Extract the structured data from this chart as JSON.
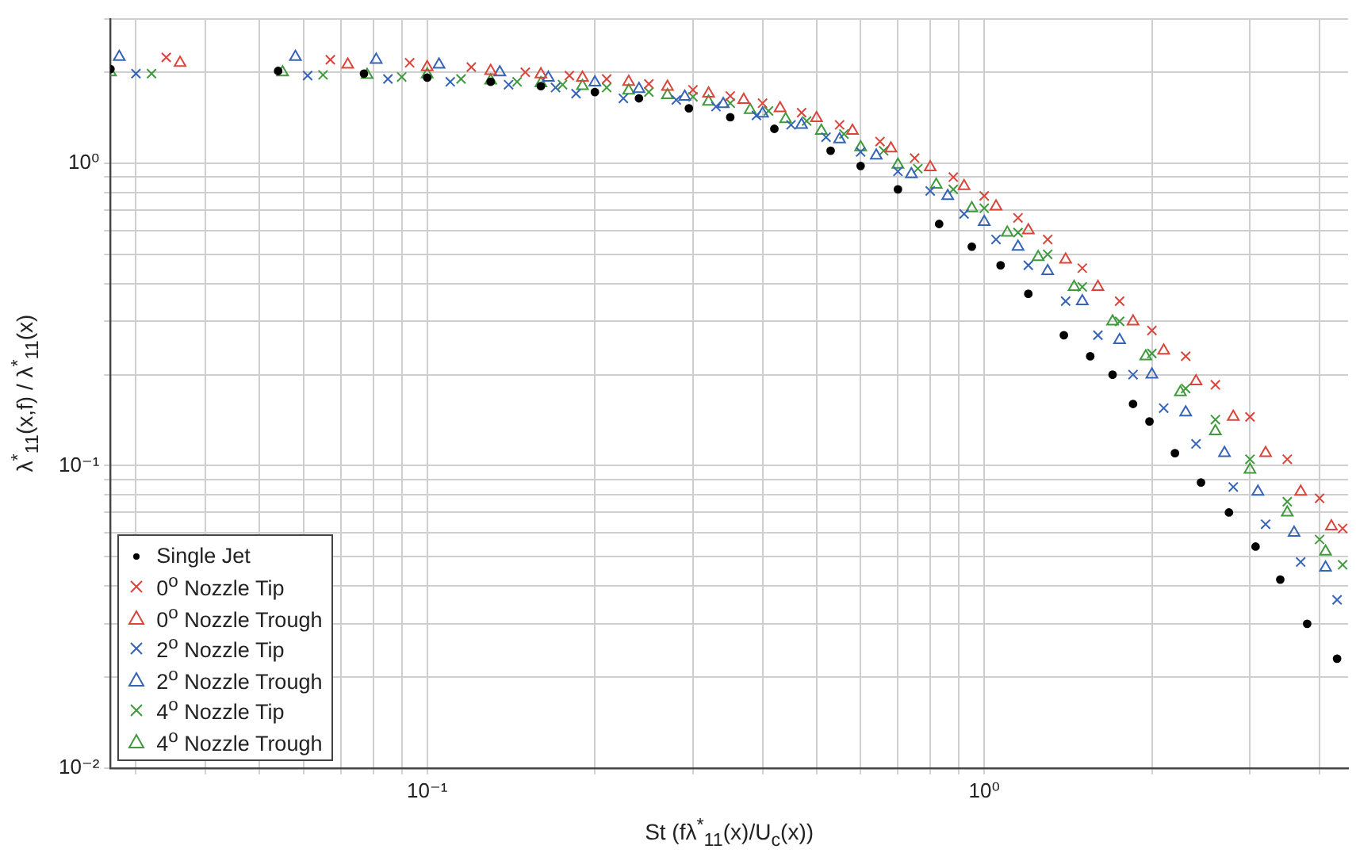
{
  "chart_data": {
    "type": "scatter",
    "xlabel": "St (fλ$^{*}$$_{11}$(x)/U$_{c}$(x))",
    "ylabel": "λ$^{*}$$_{11}$(x,f) / λ$^{*}$$_{11}$(x)",
    "log": "xy",
    "grid": true,
    "legend": "bottom left",
    "xlim": [
      0.027,
      4.5
    ],
    "ylim": [
      0.01,
      3
    ],
    "xticks": [
      {
        "value": 0.03,
        "label": null
      },
      {
        "value": 0.04,
        "label": null
      },
      {
        "value": 0.05,
        "label": null
      },
      {
        "value": 0.06,
        "label": null
      },
      {
        "value": 0.07,
        "label": null
      },
      {
        "value": 0.08,
        "label": null
      },
      {
        "value": 0.09,
        "label": null
      },
      {
        "value": 0.1,
        "label": "10⁻¹"
      },
      {
        "value": 0.2,
        "label": null
      },
      {
        "value": 0.3,
        "label": null
      },
      {
        "value": 0.4,
        "label": null
      },
      {
        "value": 0.5,
        "label": null
      },
      {
        "value": 0.6,
        "label": null
      },
      {
        "value": 0.7,
        "label": null
      },
      {
        "value": 0.8,
        "label": null
      },
      {
        "value": 0.9,
        "label": null
      },
      {
        "value": 1,
        "label": "10⁰"
      },
      {
        "value": 2,
        "label": null
      },
      {
        "value": 3,
        "label": null
      },
      {
        "value": 4,
        "label": null
      }
    ],
    "yticks": [
      {
        "value": 0.01,
        "label": "10⁻²"
      },
      {
        "value": 0.02,
        "label": null
      },
      {
        "value": 0.03,
        "label": null
      },
      {
        "value": 0.04,
        "label": null
      },
      {
        "value": 0.05,
        "label": null
      },
      {
        "value": 0.06,
        "label": null
      },
      {
        "value": 0.07,
        "label": null
      },
      {
        "value": 0.08,
        "label": null
      },
      {
        "value": 0.09,
        "label": null
      },
      {
        "value": 0.1,
        "label": "10⁻¹"
      },
      {
        "value": 0.2,
        "label": null
      },
      {
        "value": 0.3,
        "label": null
      },
      {
        "value": 0.4,
        "label": null
      },
      {
        "value": 0.5,
        "label": null
      },
      {
        "value": 0.6,
        "label": null
      },
      {
        "value": 0.7,
        "label": null
      },
      {
        "value": 0.8,
        "label": null
      },
      {
        "value": 0.9,
        "label": null
      },
      {
        "value": 1,
        "label": "10⁰"
      },
      {
        "value": 2,
        "label": null
      },
      {
        "value": 3,
        "label": null
      }
    ],
    "series": [
      {
        "name": "Single Jet",
        "color": "#000000",
        "marker": "circle",
        "x": [
          0.027,
          0.054,
          0.077,
          0.1,
          0.13,
          0.16,
          0.2,
          0.24,
          0.295,
          0.35,
          0.42,
          0.53,
          0.6,
          0.7,
          0.83,
          0.95,
          1.07,
          1.2,
          1.39,
          1.55,
          1.7,
          1.85,
          1.98,
          2.2,
          2.45,
          2.75,
          3.07,
          3.4,
          3.8,
          4.3
        ],
        "values": [
          2.05,
          2.02,
          1.98,
          1.92,
          1.86,
          1.8,
          1.72,
          1.64,
          1.52,
          1.42,
          1.3,
          1.1,
          0.98,
          0.82,
          0.63,
          0.53,
          0.46,
          0.37,
          0.27,
          0.23,
          0.2,
          0.16,
          0.14,
          0.11,
          0.088,
          0.07,
          0.054,
          0.042,
          0.03,
          0.023
        ]
      },
      {
        "name": "0$^{o}$ Nozzle Tip",
        "color": "#d9453a",
        "marker": "cross",
        "x": [
          0.034,
          0.067,
          0.093,
          0.12,
          0.15,
          0.18,
          0.21,
          0.25,
          0.3,
          0.35,
          0.4,
          0.47,
          0.55,
          0.65,
          0.75,
          0.88,
          1.0,
          1.15,
          1.3,
          1.5,
          1.75,
          2.0,
          2.3,
          2.6,
          3.0,
          3.5,
          4.0,
          4.4
        ],
        "values": [
          2.24,
          2.2,
          2.15,
          2.08,
          2.0,
          1.95,
          1.9,
          1.83,
          1.75,
          1.67,
          1.58,
          1.47,
          1.34,
          1.18,
          1.04,
          0.9,
          0.78,
          0.66,
          0.56,
          0.45,
          0.35,
          0.28,
          0.23,
          0.185,
          0.145,
          0.105,
          0.078,
          0.062
        ]
      },
      {
        "name": "0$^{o}$ Nozzle Trough",
        "color": "#d9453a",
        "marker": "triangle",
        "x": [
          0.036,
          0.072,
          0.1,
          0.13,
          0.16,
          0.19,
          0.23,
          0.27,
          0.32,
          0.37,
          0.43,
          0.5,
          0.58,
          0.68,
          0.8,
          0.92,
          1.05,
          1.2,
          1.4,
          1.6,
          1.85,
          2.1,
          2.4,
          2.8,
          3.2,
          3.7,
          4.2
        ],
        "values": [
          2.15,
          2.12,
          2.08,
          2.02,
          1.97,
          1.92,
          1.86,
          1.79,
          1.7,
          1.62,
          1.52,
          1.41,
          1.28,
          1.12,
          0.97,
          0.84,
          0.72,
          0.6,
          0.48,
          0.39,
          0.3,
          0.24,
          0.19,
          0.145,
          0.11,
          0.082,
          0.063
        ]
      },
      {
        "name": "2$^{o}$ Nozzle Tip",
        "color": "#3563b8",
        "marker": "cross",
        "x": [
          0.03,
          0.061,
          0.085,
          0.11,
          0.14,
          0.17,
          0.185,
          0.225,
          0.28,
          0.33,
          0.39,
          0.45,
          0.52,
          0.6,
          0.7,
          0.8,
          0.92,
          1.05,
          1.2,
          1.4,
          1.6,
          1.85,
          2.1,
          2.4,
          2.8,
          3.2,
          3.7,
          4.3
        ],
        "values": [
          1.98,
          1.95,
          1.9,
          1.86,
          1.82,
          1.78,
          1.7,
          1.64,
          1.62,
          1.54,
          1.44,
          1.34,
          1.22,
          1.09,
          0.94,
          0.81,
          0.68,
          0.56,
          0.46,
          0.35,
          0.27,
          0.2,
          0.155,
          0.118,
          0.085,
          0.064,
          0.048,
          0.036
        ]
      },
      {
        "name": "2$^{o}$ Nozzle Trough",
        "color": "#3563b8",
        "marker": "triangle",
        "x": [
          0.028,
          0.058,
          0.081,
          0.105,
          0.135,
          0.165,
          0.2,
          0.24,
          0.29,
          0.34,
          0.4,
          0.47,
          0.55,
          0.64,
          0.74,
          0.86,
          1.0,
          1.15,
          1.3,
          1.5,
          1.75,
          2.0,
          2.3,
          2.7,
          3.1,
          3.6,
          4.1
        ],
        "values": [
          2.25,
          2.25,
          2.2,
          2.12,
          2.0,
          1.92,
          1.85,
          1.76,
          1.66,
          1.57,
          1.46,
          1.34,
          1.2,
          1.06,
          0.92,
          0.78,
          0.64,
          0.53,
          0.44,
          0.35,
          0.26,
          0.2,
          0.15,
          0.11,
          0.082,
          0.06,
          0.046
        ]
      },
      {
        "name": "4$^{o}$ Nozzle Tip",
        "color": "#3f9a3c",
        "marker": "cross",
        "x": [
          0.032,
          0.065,
          0.09,
          0.115,
          0.145,
          0.175,
          0.21,
          0.25,
          0.3,
          0.35,
          0.41,
          0.48,
          0.56,
          0.66,
          0.76,
          0.88,
          1.0,
          1.15,
          1.3,
          1.5,
          1.75,
          2.0,
          2.3,
          2.6,
          3.0,
          3.5,
          4.0,
          4.4
        ],
        "values": [
          1.98,
          1.96,
          1.93,
          1.9,
          1.86,
          1.82,
          1.78,
          1.72,
          1.66,
          1.58,
          1.49,
          1.38,
          1.25,
          1.1,
          0.96,
          0.82,
          0.71,
          0.59,
          0.5,
          0.39,
          0.3,
          0.235,
          0.18,
          0.142,
          0.105,
          0.076,
          0.057,
          0.047
        ]
      },
      {
        "name": "4$^{o}$ Nozzle Trough",
        "color": "#3f9a3c",
        "marker": "triangle",
        "x": [
          0.027,
          0.055,
          0.078,
          0.1,
          0.13,
          0.16,
          0.19,
          0.23,
          0.27,
          0.32,
          0.38,
          0.44,
          0.51,
          0.6,
          0.7,
          0.82,
          0.95,
          1.1,
          1.25,
          1.45,
          1.7,
          1.95,
          2.25,
          2.6,
          3.0,
          3.5,
          4.1
        ],
        "values": [
          2.0,
          2.0,
          1.96,
          1.97,
          1.88,
          1.84,
          1.8,
          1.74,
          1.68,
          1.6,
          1.5,
          1.4,
          1.28,
          1.13,
          0.99,
          0.85,
          0.71,
          0.59,
          0.49,
          0.39,
          0.3,
          0.23,
          0.175,
          0.13,
          0.097,
          0.07,
          0.052
        ]
      }
    ]
  }
}
